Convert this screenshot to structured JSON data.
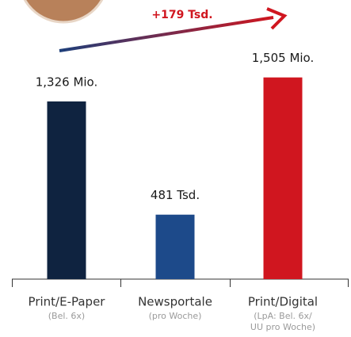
{
  "chart_data": {
    "type": "bar",
    "categories": [
      "Print/E-Paper",
      "Newsportale",
      "Print/Digital"
    ],
    "sublabels": [
      [
        "(Bel. 6x)"
      ],
      [
        "(pro Woche)"
      ],
      [
        "(LpA: Bel. 6x/",
        "UU pro Woche)"
      ]
    ],
    "values": [
      1326,
      481,
      1505
    ],
    "value_labels": [
      "1,326 Mio.",
      "481 Tsd.",
      "1,505 Mio."
    ],
    "colors": [
      "#0f2340",
      "#1d4a8a",
      "#d0161f"
    ],
    "annotation": "+179 Tsd."
  }
}
